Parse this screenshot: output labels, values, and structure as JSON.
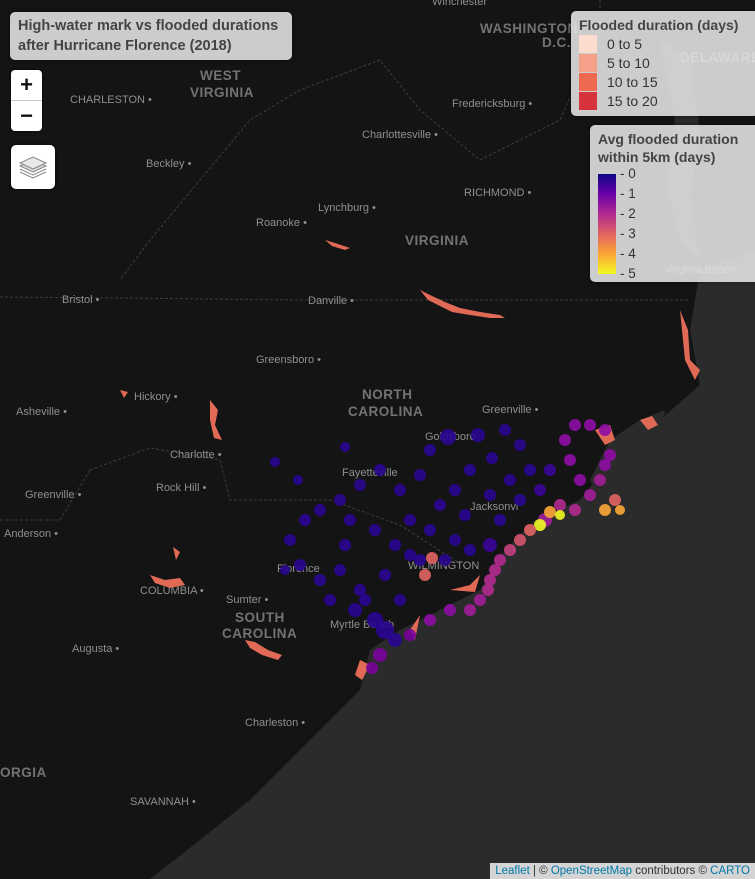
{
  "map": {
    "title": "High-water mark vs flooded durations after Hurricane Florence (2018)",
    "title_lines": [
      "High-water mark vs flooded durations",
      "after Hurricane Florence (2018)"
    ],
    "zoom_in_label": "+",
    "zoom_out_label": "−",
    "state_labels": [
      "WEST VIRGINIA",
      "VIRGINIA",
      "NORTH CAROLINA",
      "SOUTH CAROLINA",
      "WASHINGTON D.C.",
      "DELAWARE",
      "GEORGIA"
    ],
    "city_labels": [
      "Winchester",
      "CHARLESTON",
      "Fredericksburg",
      "Charlottesville",
      "Beckley",
      "RICHMOND",
      "Lynchburg",
      "Roanoke",
      "Bristol",
      "Danville",
      "Greensboro",
      "Hickory",
      "Asheville",
      "Greenville",
      "Goldsboro",
      "Charlotte",
      "Fayetteville",
      "Rock Hill",
      "Jacksonville",
      "Greenville",
      "Anderson",
      "Florence",
      "WILMINGTON",
      "COLUMBIA",
      "Sumter",
      "Myrtle Beach",
      "Augusta",
      "Charleston",
      "SAVANNAH",
      "Virginia Beach"
    ]
  },
  "legend_duration": {
    "title": "Flooded duration (days)",
    "items": [
      {
        "label": "0 to 5",
        "color": "#fcdccf"
      },
      {
        "label": "5 to 10",
        "color": "#f6a08a"
      },
      {
        "label": "10 to 15",
        "color": "#ee6950"
      },
      {
        "label": "15 to 20",
        "color": "#d7333b"
      }
    ]
  },
  "legend_avg": {
    "title_lines": [
      "Avg flooded duration",
      "within 5km (days)"
    ],
    "ticks": [
      "0",
      "1",
      "2",
      "3",
      "4",
      "5"
    ],
    "colors": [
      "#0d0887",
      "#6a00a8",
      "#b12a90",
      "#e16462",
      "#fca636",
      "#f0f921"
    ]
  },
  "attribution": {
    "leaflet": "Leaflet",
    "sep1": " | © ",
    "osm": "OpenStreetMap",
    "mid": " contributors © ",
    "carto": "CARTO"
  }
}
